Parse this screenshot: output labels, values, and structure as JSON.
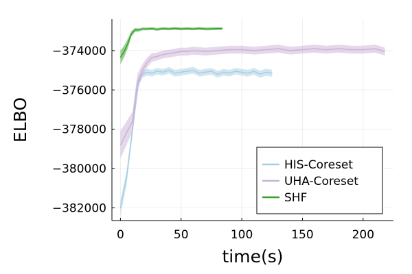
{
  "chart_data": {
    "type": "line",
    "title": "",
    "xlabel": "time(s)",
    "ylabel": "ELBO",
    "xlim": [
      -7,
      225
    ],
    "ylim": [
      -382650,
      -372400
    ],
    "x_ticks": [
      0,
      50,
      100,
      150,
      200
    ],
    "x_tick_labels": [
      "0",
      "50",
      "100",
      "150",
      "200"
    ],
    "y_ticks": [
      -382000,
      -380000,
      -378000,
      -376000,
      -374000
    ],
    "y_tick_labels": [
      "−382000",
      "−380000",
      "−378000",
      "−376000",
      "−374000"
    ],
    "grid": true,
    "legend_position": "bottom-right",
    "series": [
      {
        "name": "HIS-Coreset",
        "color": "#a6cee3",
        "x": [
          0,
          5,
          9,
          12,
          15,
          18,
          22,
          26,
          30,
          35,
          40,
          45,
          50,
          55,
          60,
          65,
          70,
          75,
          80,
          85,
          90,
          95,
          100,
          105,
          110,
          115,
          120,
          125
        ],
        "y": [
          -382000,
          -380500,
          -378500,
          -377000,
          -375600,
          -375200,
          -375100,
          -375150,
          -375050,
          -375100,
          -375000,
          -375150,
          -375100,
          -375050,
          -375000,
          -375150,
          -375100,
          -375050,
          -375200,
          -375100,
          -375150,
          -375050,
          -375100,
          -375150,
          -375050,
          -375200,
          -375100,
          -375150
        ],
        "band_halfwidth": [
          400,
          350,
          300,
          250,
          200,
          180,
          170,
          170,
          170,
          170,
          170,
          170,
          170,
          170,
          170,
          170,
          170,
          170,
          170,
          170,
          170,
          170,
          170,
          170,
          170,
          180,
          180,
          180
        ]
      },
      {
        "name": "UHA-Coreset",
        "color": "#cab2d6",
        "x": [
          0,
          5,
          10,
          14,
          18,
          22,
          26,
          30,
          35,
          40,
          45,
          50,
          55,
          60,
          70,
          80,
          90,
          100,
          110,
          120,
          130,
          140,
          150,
          160,
          170,
          180,
          190,
          200,
          210,
          218
        ],
        "y": [
          -378800,
          -378200,
          -377600,
          -375600,
          -375000,
          -374600,
          -374350,
          -374300,
          -374200,
          -374150,
          -374100,
          -374050,
          -374050,
          -374000,
          -374050,
          -374000,
          -373950,
          -373950,
          -374000,
          -373950,
          -373900,
          -374000,
          -373950,
          -373900,
          -373950,
          -373900,
          -373950,
          -373950,
          -373900,
          -374050
        ],
        "band_halfwidth": [
          700,
          600,
          500,
          400,
          300,
          250,
          220,
          200,
          200,
          200,
          200,
          200,
          200,
          200,
          200,
          200,
          200,
          200,
          200,
          200,
          200,
          200,
          200,
          200,
          200,
          200,
          200,
          200,
          200,
          200
        ]
      },
      {
        "name": "SHF",
        "color": "#33a02c",
        "x": [
          0,
          3,
          6,
          9,
          12,
          15,
          18,
          22,
          26,
          30,
          35,
          40,
          45,
          50,
          55,
          60,
          65,
          70,
          75,
          80,
          84
        ],
        "y": [
          -374350,
          -374050,
          -373650,
          -373150,
          -372950,
          -372950,
          -372900,
          -372900,
          -372880,
          -372920,
          -372880,
          -372900,
          -372870,
          -372900,
          -372880,
          -372900,
          -372870,
          -372900,
          -372890,
          -372880,
          -372880
        ],
        "band_halfwidth": [
          350,
          300,
          250,
          150,
          100,
          80,
          70,
          70,
          70,
          70,
          70,
          70,
          70,
          70,
          70,
          70,
          70,
          70,
          70,
          70,
          70
        ]
      }
    ]
  }
}
